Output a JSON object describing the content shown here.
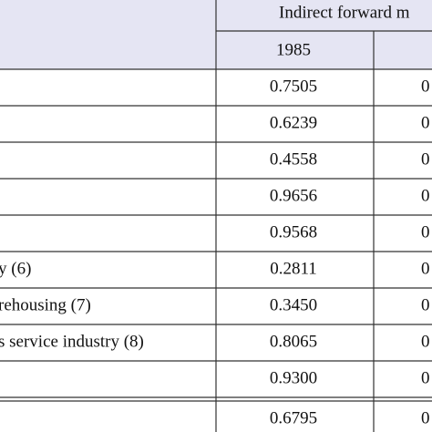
{
  "header": {
    "title": "Indirect forward m",
    "years": [
      "1985"
    ]
  },
  "table": {
    "rows": [
      {
        "value": "0.7505",
        "next": "0"
      },
      {
        "value": "0.6239",
        "next": "0"
      },
      {
        "value": "0.4558",
        "next": "0"
      },
      {
        "value": "0.9656",
        "next": "0"
      },
      {
        "value": "0.9568",
        "next": "0"
      },
      {
        "label": "y (6)",
        "value": "0.2811",
        "next": "0"
      },
      {
        "label": "rehousing (7)",
        "value": "0.3450",
        "next": "0"
      },
      {
        "label": "s service industry (8)",
        "value": "0.8065",
        "next": "0"
      },
      {
        "value": "0.9300",
        "next": "0"
      },
      {
        "value": "0.6795",
        "next": "0"
      }
    ]
  }
}
